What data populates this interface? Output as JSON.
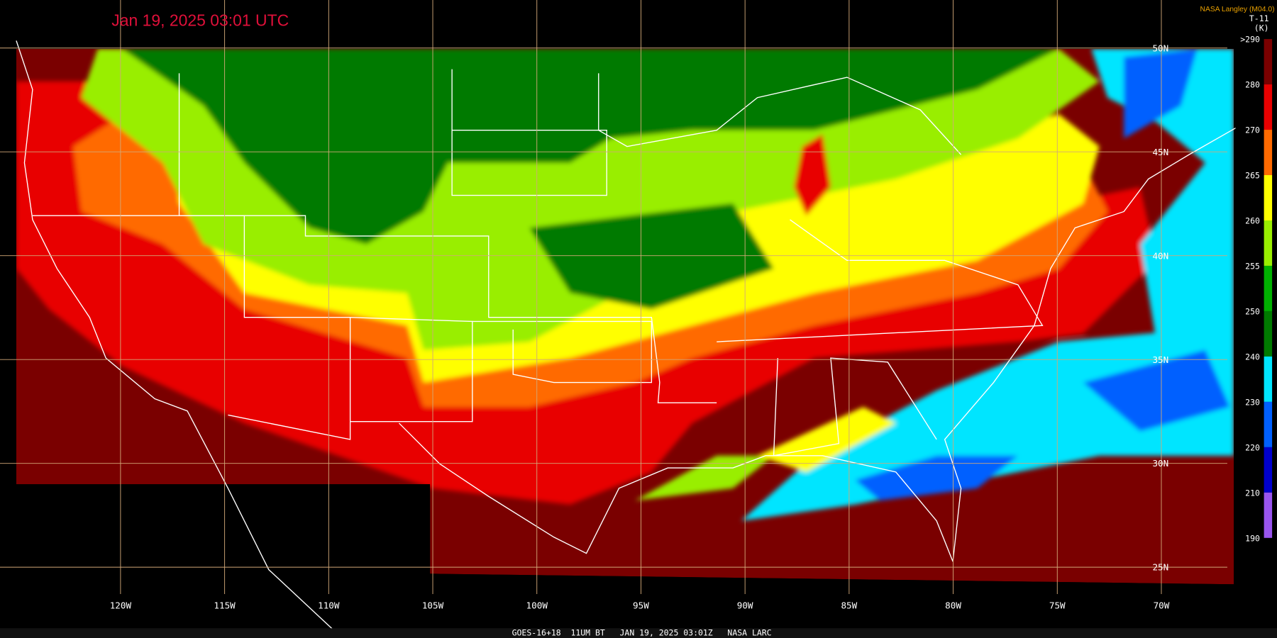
{
  "title": "Jan 19, 2025 03:01 UTC",
  "credit": "NASA Langley (M04.0)",
  "band": "T-11",
  "units": "(K)",
  "colorbar": {
    "labels": [
      ">290",
      "280",
      "270",
      "265",
      "260",
      "255",
      "250",
      "240",
      "230",
      "220",
      "210",
      "190"
    ],
    "colors": [
      "#7a0000",
      "#e80000",
      "#ff6a00",
      "#ffff00",
      "#99ee00",
      "#00b000",
      "#007a00",
      "#00e5ff",
      "#0060ff",
      "#0000cc",
      "#9955ee"
    ]
  },
  "longitude_labels": [
    "120W",
    "115W",
    "110W",
    "105W",
    "100W",
    "95W",
    "90W",
    "85W",
    "80W",
    "75W",
    "70W"
  ],
  "latitude_labels": [
    "50N",
    "45N",
    "40N",
    "35N",
    "30N",
    "25N"
  ],
  "footer": "GOES-16+18  11UM BT   JAN 19, 2025 03:01Z   NASA LARC"
}
